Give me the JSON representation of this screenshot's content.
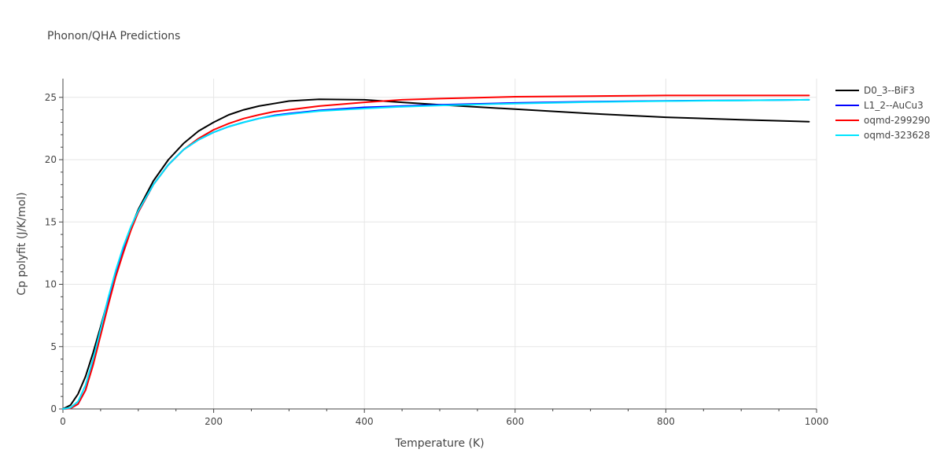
{
  "chart_data": {
    "type": "line",
    "title": "Phonon/QHA Predictions",
    "xlabel": "Temperature (K)",
    "ylabel": "Cp polyfit (J/K/mol)",
    "xlim": [
      0,
      1000
    ],
    "ylim": [
      0,
      26.5
    ],
    "x_ticks": [
      0,
      200,
      400,
      600,
      800,
      1000
    ],
    "x_tick_labels": [
      "0",
      "200",
      "400",
      "600",
      "800",
      "1000"
    ],
    "y_ticks": [
      0,
      5,
      10,
      15,
      20,
      25
    ],
    "y_tick_labels": [
      "0",
      "5",
      "10",
      "15",
      "20",
      "25"
    ],
    "grid": true,
    "legend_position": "top-right",
    "x": [
      0,
      10,
      20,
      30,
      40,
      50,
      60,
      70,
      80,
      90,
      100,
      120,
      140,
      160,
      180,
      200,
      220,
      240,
      260,
      280,
      300,
      340,
      400,
      450,
      500,
      600,
      700,
      800,
      900,
      990
    ],
    "series": [
      {
        "name": "D0_3--BiF3",
        "color": "#000000",
        "values": [
          0,
          0.3,
          1.2,
          2.6,
          4.5,
          6.6,
          8.8,
          10.9,
          12.8,
          14.5,
          16.0,
          18.3,
          20.0,
          21.3,
          22.3,
          23.0,
          23.6,
          24.0,
          24.3,
          24.5,
          24.7,
          24.85,
          24.8,
          24.6,
          24.4,
          24.05,
          23.7,
          23.4,
          23.2,
          23.05
        ]
      },
      {
        "name": "L1_2--AuCu3",
        "color": "#0000ff",
        "values": [
          0,
          0.05,
          0.4,
          1.5,
          3.6,
          6.0,
          8.5,
          10.8,
          12.7,
          14.4,
          15.8,
          18.0,
          19.6,
          20.8,
          21.6,
          22.2,
          22.65,
          23.0,
          23.3,
          23.55,
          23.7,
          23.95,
          24.2,
          24.3,
          24.4,
          24.55,
          24.65,
          24.72,
          24.76,
          24.8
        ]
      },
      {
        "name": "oqmd-299290",
        "color": "#ff0000",
        "values": [
          0,
          0.05,
          0.4,
          1.5,
          3.5,
          5.9,
          8.3,
          10.6,
          12.5,
          14.3,
          15.8,
          18.0,
          19.6,
          20.8,
          21.7,
          22.4,
          22.9,
          23.3,
          23.6,
          23.85,
          24.0,
          24.3,
          24.6,
          24.8,
          24.9,
          25.05,
          25.1,
          25.15,
          25.15,
          25.15
        ]
      },
      {
        "name": "oqmd-323628",
        "color": "#00e5ff",
        "values": [
          0,
          0.1,
          0.6,
          1.9,
          4.0,
          6.4,
          8.9,
          11.1,
          13.0,
          14.6,
          15.9,
          18.0,
          19.6,
          20.8,
          21.6,
          22.2,
          22.65,
          23.0,
          23.3,
          23.5,
          23.65,
          23.9,
          24.1,
          24.25,
          24.35,
          24.5,
          24.62,
          24.7,
          24.75,
          24.8
        ]
      }
    ]
  }
}
